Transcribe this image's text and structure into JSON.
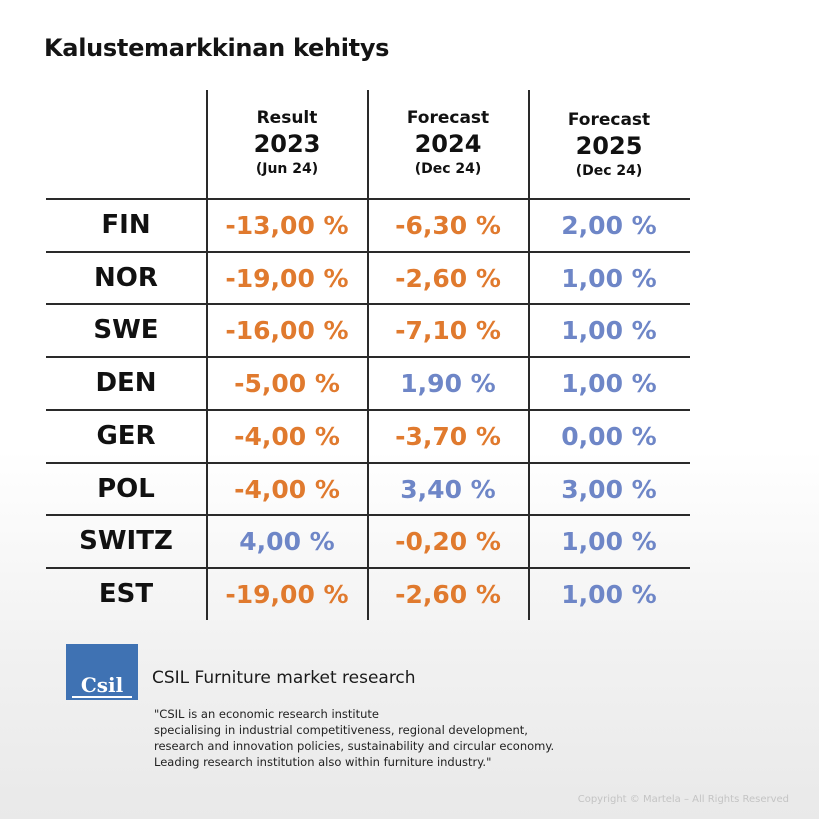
{
  "title": "Kalustemarkkinan kehitys",
  "columns": [
    {
      "label": "Result",
      "year": "2023",
      "note": "(Jun 24)"
    },
    {
      "label": "Forecast",
      "year": "2024",
      "note": "(Dec 24)"
    },
    {
      "label": "Forecast",
      "year": "2025",
      "note": "(Dec 24)"
    }
  ],
  "rows": [
    {
      "country": "FIN",
      "values": [
        "-13,00 %",
        "-6,30 %",
        "2,00 %"
      ]
    },
    {
      "country": "NOR",
      "values": [
        "-19,00 %",
        "-2,60 %",
        "1,00 %"
      ]
    },
    {
      "country": "SWE",
      "values": [
        "-16,00 %",
        "-7,10 %",
        "1,00 %"
      ]
    },
    {
      "country": "DEN",
      "values": [
        "-5,00 %",
        "1,90 %",
        "1,00 %"
      ]
    },
    {
      "country": "GER",
      "values": [
        "-4,00 %",
        "-3,70 %",
        "0,00 %"
      ]
    },
    {
      "country": "POL",
      "values": [
        "-4,00 %",
        "3,40 %",
        "3,00 %"
      ]
    },
    {
      "country": "SWITZ",
      "values": [
        "4,00 %",
        "-0,20 %",
        "1,00 %"
      ]
    },
    {
      "country": "EST",
      "values": [
        "-19,00 %",
        "-2,60 %",
        "1,00 %"
      ]
    }
  ],
  "colors": {
    "negative": "#e07a2e",
    "positive": "#6e86c7"
  },
  "source": {
    "logo_text": "Csil",
    "name": "CSIL Furniture market research",
    "quote_lines": [
      "\"CSIL is an economic research institute",
      "specialising in industrial competitiveness, regional development,",
      "research and innovation policies, sustainability and circular economy.",
      "Leading research institution also within furniture industry.\""
    ]
  },
  "copyright": "Copyright © Martela – All Rights Reserved"
}
